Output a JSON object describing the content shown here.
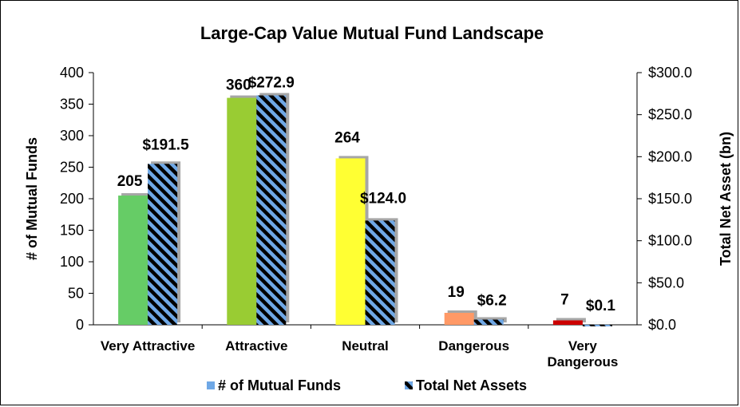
{
  "chart_data": {
    "type": "bar",
    "title": "Large-Cap Value Mutual Fund Landscape",
    "categories": [
      [
        "Very Attractive"
      ],
      [
        "Attractive"
      ],
      [
        "Neutral"
      ],
      [
        "Dangerous"
      ],
      [
        "Very",
        "Dangerous"
      ]
    ],
    "category_colors": [
      "#66cc66",
      "#99cc33",
      "#ffff33",
      "#ff9966",
      "#cc0000"
    ],
    "series": [
      {
        "name": "# of Mutual Funds",
        "axis": "left",
        "values": [
          205,
          360,
          264,
          19,
          7
        ],
        "labels": [
          "205",
          "360",
          "264",
          "19",
          "7"
        ],
        "color": "#6fa8e6"
      },
      {
        "name": "Total Net Assets",
        "axis": "right",
        "values": [
          191.5,
          272.9,
          124.0,
          6.2,
          0.1
        ],
        "labels": [
          "$191.5",
          "$272.9",
          "$124.0",
          "$6.2",
          "$0.1"
        ],
        "color": "#6fa8e6",
        "pattern": "diagonal-stripes-black-blue"
      }
    ],
    "y_left": {
      "label": "# of Mutual Funds",
      "ylim": [
        0,
        400
      ],
      "ticks": [
        0,
        50,
        100,
        150,
        200,
        250,
        300,
        350,
        400
      ],
      "tick_labels": [
        "0",
        "50",
        "100",
        "150",
        "200",
        "250",
        "300",
        "350",
        "400"
      ]
    },
    "y_right": {
      "label": "Total Net Asset (bn)",
      "ylim": [
        0,
        300
      ],
      "ticks": [
        0,
        50,
        100,
        150,
        200,
        250,
        300
      ],
      "tick_labels": [
        "$0.0",
        "$50.0",
        "$100.0",
        "$150.0",
        "$200.0",
        "$250.0",
        "$300.0"
      ]
    },
    "grid": false,
    "legend": {
      "position": "bottom",
      "entries": [
        "# of Mutual Funds",
        "Total Net Assets"
      ]
    }
  }
}
